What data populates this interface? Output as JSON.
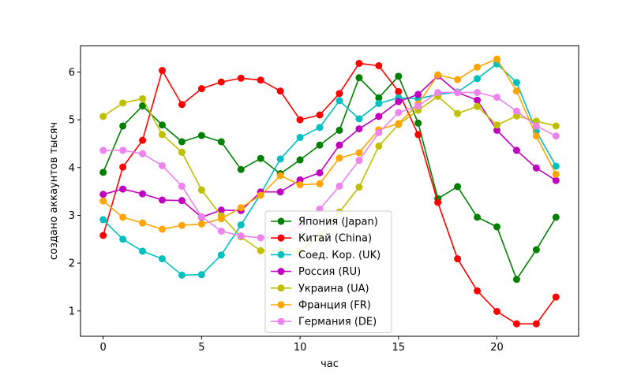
{
  "chart_data": {
    "type": "line",
    "xlabel": "час",
    "ylabel": "создано аккаунтов тысяч",
    "xlim": [
      -1.15,
      24.15
    ],
    "ylim": [
      0.47,
      6.55
    ],
    "xticks": [
      0,
      5,
      10,
      15,
      20
    ],
    "yticks": [
      1,
      2,
      3,
      4,
      5,
      6
    ],
    "grid": false,
    "legend_position": "center",
    "x": [
      0,
      1,
      2,
      3,
      4,
      5,
      6,
      7,
      8,
      9,
      10,
      11,
      12,
      13,
      14,
      15,
      16,
      17,
      18,
      19,
      20,
      21,
      22,
      23
    ],
    "series": [
      {
        "name": "Япония (Japan)",
        "color": "#008000",
        "values": [
          3.9,
          4.87,
          5.29,
          4.89,
          4.54,
          4.67,
          4.54,
          3.96,
          4.19,
          3.87,
          4.16,
          4.47,
          4.78,
          5.88,
          5.46,
          5.91,
          4.93,
          3.35,
          3.6,
          2.96,
          2.76,
          1.66,
          2.28,
          2.96
        ]
      },
      {
        "name": "Китай (China)",
        "color": "#ff0000",
        "values": [
          2.58,
          4.01,
          4.57,
          6.03,
          5.32,
          5.65,
          5.79,
          5.87,
          5.83,
          5.6,
          5.0,
          5.1,
          5.55,
          6.18,
          6.13,
          5.59,
          4.69,
          3.27,
          2.09,
          1.42,
          0.99,
          0.73,
          0.73,
          1.29
        ]
      },
      {
        "name": "Соед. Кор. (UK)",
        "color": "#00bfbf",
        "values": [
          2.91,
          2.5,
          2.25,
          2.09,
          1.75,
          1.76,
          2.17,
          2.8,
          3.45,
          4.18,
          4.63,
          4.84,
          5.4,
          5.02,
          5.34,
          5.46,
          5.44,
          5.53,
          5.58,
          5.86,
          6.17,
          5.78,
          4.76,
          4.03
        ]
      },
      {
        "name": "Россия (RU)",
        "color": "#bf00bf",
        "values": [
          3.44,
          3.55,
          3.45,
          3.32,
          3.31,
          2.96,
          3.11,
          3.1,
          3.49,
          3.49,
          3.74,
          3.89,
          4.47,
          4.81,
          5.07,
          5.38,
          5.53,
          5.92,
          5.57,
          5.41,
          4.78,
          4.36,
          3.99,
          3.73
        ]
      },
      {
        "name": "Украина (UA)",
        "color": "#bfbf00",
        "values": [
          5.07,
          5.35,
          5.44,
          4.69,
          4.32,
          3.53,
          2.99,
          2.55,
          2.26,
          2.25,
          2.25,
          2.56,
          3.07,
          3.59,
          4.45,
          4.9,
          5.2,
          5.49,
          5.13,
          5.28,
          4.89,
          5.08,
          4.97,
          4.87
        ]
      },
      {
        "name": "Франция (FR)",
        "color": "#ffa500",
        "values": [
          3.3,
          2.96,
          2.84,
          2.71,
          2.79,
          2.82,
          2.93,
          3.16,
          3.42,
          3.83,
          3.64,
          3.66,
          4.2,
          4.31,
          4.79,
          4.92,
          5.33,
          5.94,
          5.84,
          6.1,
          6.27,
          5.6,
          4.66,
          3.86
        ]
      },
      {
        "name": "Германия (DE)",
        "color": "#ee82ee",
        "values": [
          4.36,
          4.36,
          4.29,
          4.04,
          3.61,
          2.97,
          2.67,
          2.57,
          2.53,
          2.56,
          2.78,
          3.13,
          3.61,
          4.15,
          4.73,
          5.15,
          5.29,
          5.57,
          5.57,
          5.57,
          5.47,
          5.18,
          4.87,
          4.66
        ]
      }
    ]
  }
}
